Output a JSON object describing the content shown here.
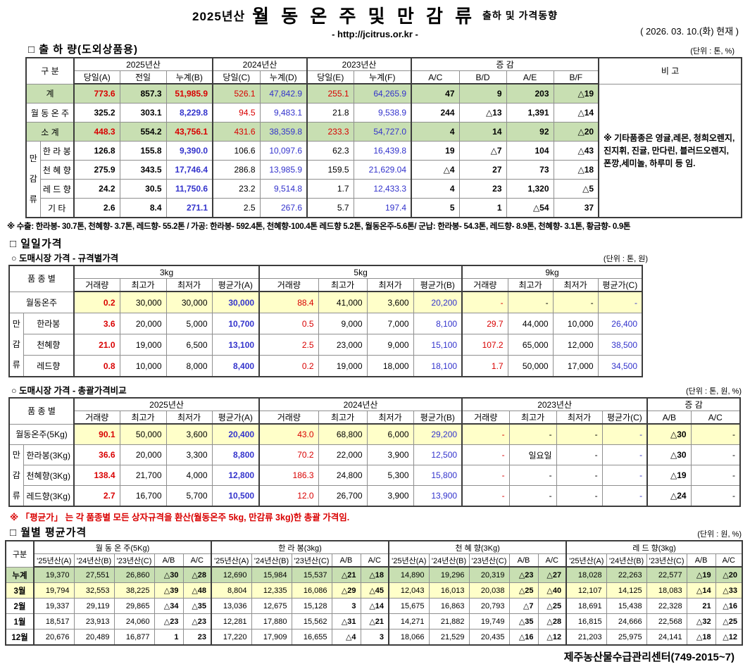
{
  "header": {
    "season": "2025년산",
    "title": "월 동 온 주 및 만 감 류",
    "subtitle": "출하 및 가격동향",
    "url": "- http://jcitrus.or.kr -",
    "date": "( 2026. 03. 10.(화) 현재 )"
  },
  "shipment": {
    "section_title": "□ 출 하 량(도외상품용)",
    "unit": "(단위 : 톤, %)",
    "first_col": "구      분",
    "year_groups": [
      "2025년산",
      "2024년산",
      "2023년산"
    ],
    "change_label": "증        감",
    "remark_col": "비 고",
    "columns": [
      "당일(A)",
      "전일",
      "누계(B)",
      "당일(C)",
      "누계(D)",
      "당일(E)",
      "누계(F)",
      "A/C",
      "B/D",
      "A/E",
      "B/F"
    ],
    "group_label": "만감류",
    "rows": [
      {
        "label": "계",
        "hl": "green",
        "v": [
          "773.6",
          "857.3",
          "51,985.9",
          "526.1",
          "47,842.9",
          "255.1",
          "64,265.9",
          "47",
          "9",
          "203",
          "△19"
        ],
        "s": [
          "rb",
          "b",
          "rb",
          "r",
          "bl",
          "r",
          "bl",
          "b",
          "b",
          "b",
          "b"
        ]
      },
      {
        "label": "월 동 온 주",
        "hl": "",
        "v": [
          "325.2",
          "303.1",
          "8,229.8",
          "94.5",
          "9,483.1",
          "21.8",
          "9,538.9",
          "244",
          "△13",
          "1,391",
          "△14"
        ],
        "s": [
          "b",
          "b",
          "bb",
          "r",
          "bl",
          "",
          "bl",
          "b",
          "b",
          "b",
          "b"
        ]
      },
      {
        "label": "소    계",
        "hl": "green",
        "v": [
          "448.3",
          "554.2",
          "43,756.1",
          "431.6",
          "38,359.8",
          "233.3",
          "54,727.0",
          "4",
          "14",
          "92",
          "△20"
        ],
        "s": [
          "rb",
          "b",
          "rb",
          "r",
          "bl",
          "r",
          "bl",
          "b",
          "b",
          "b",
          "b"
        ]
      },
      {
        "label": "한 라 봉",
        "hl": "",
        "v": [
          "126.8",
          "155.8",
          "9,390.0",
          "106.6",
          "10,097.6",
          "62.3",
          "16,439.8",
          "19",
          "△7",
          "104",
          "△43"
        ],
        "s": [
          "b",
          "b",
          "bb",
          "",
          "bl",
          "",
          "bl",
          "b",
          "b",
          "b",
          "b"
        ]
      },
      {
        "label": "천 혜 향",
        "hl": "",
        "v": [
          "275.9",
          "343.5",
          "17,746.4",
          "286.8",
          "13,985.9",
          "159.5",
          "21,629.04",
          "△4",
          "27",
          "73",
          "△18"
        ],
        "s": [
          "b",
          "b",
          "bb",
          "",
          "bl",
          "",
          "bl",
          "b",
          "b",
          "b",
          "b"
        ]
      },
      {
        "label": "레 드 향",
        "hl": "",
        "v": [
          "24.2",
          "30.5",
          "11,750.6",
          "23.2",
          "9,514.8",
          "1.7",
          "12,433.3",
          "4",
          "23",
          "1,320",
          "△5"
        ],
        "s": [
          "b",
          "b",
          "bb",
          "",
          "bl",
          "",
          "bl",
          "b",
          "b",
          "b",
          "b"
        ]
      },
      {
        "label": "기    타",
        "hl": "",
        "v": [
          "2.6",
          "8.4",
          "271.1",
          "2.5",
          "267.6",
          "5.7",
          "197.4",
          "5",
          "1",
          "△54",
          "37"
        ],
        "s": [
          "b",
          "b",
          "bb",
          "",
          "bl",
          "",
          "bl",
          "b",
          "b",
          "b",
          "b"
        ]
      }
    ],
    "remark": "※ 기타품종은 영귤,레몬, 청희오렌지, 진지휘, 진귤, 만다린, 블러드오렌지, 폰깡,세미놀, 하루미 등 임.",
    "footnote": "※ 수출: 한라봉- 30.7톤, 천혜향- 3.7톤, 레드향- 55.2톤 / 가공: 한라봉- 592.4톤, 천혜향-100.4톤 레드향 5.2톤, 월동온주-5.6톤/  군납: 한라봉- 54.3톤, 레드향- 8.9톤, 천혜향- 3.1톤, 황금향- 0.9톤"
  },
  "daily": {
    "section_title": "□ 일일가격",
    "by_spec": {
      "subtitle": "○ 도매시장 가격 - 규격별가격",
      "unit": "(단위 : 톤, 원)",
      "first_col": "품 종 별",
      "col_groups": [
        "3kg",
        "5kg",
        "9kg"
      ],
      "columns": [
        "거래량",
        "최고가",
        "최저가",
        "평균가(A)",
        "거래량",
        "최고가",
        "최저가",
        "평균가(B)",
        "거래량",
        "최고가",
        "최저가",
        "평균가(C)"
      ],
      "group_label": "만감류",
      "rows": [
        {
          "label": "월동온주",
          "hl": "yellow",
          "v": [
            "0.2",
            "30,000",
            "30,000",
            "30,000",
            "88.4",
            "41,000",
            "3,600",
            "20,200",
            "-",
            "-",
            "-",
            "-"
          ],
          "s": [
            "rb",
            "",
            "",
            "bb",
            "r",
            "",
            "",
            "bl",
            "r",
            "",
            "",
            "bl"
          ]
        },
        {
          "label": "한라봉",
          "hl": "",
          "v": [
            "3.6",
            "20,000",
            "5,000",
            "10,700",
            "0.5",
            "9,000",
            "7,000",
            "8,100",
            "29.7",
            "44,000",
            "10,000",
            "26,400"
          ],
          "s": [
            "rb",
            "",
            "",
            "bb",
            "r",
            "",
            "",
            "bl",
            "r",
            "",
            "",
            "bl"
          ]
        },
        {
          "label": "천혜향",
          "hl": "",
          "v": [
            "21.0",
            "19,000",
            "6,500",
            "13,100",
            "2.5",
            "23,000",
            "9,000",
            "15,100",
            "107.2",
            "65,000",
            "12,000",
            "38,500"
          ],
          "s": [
            "rb",
            "",
            "",
            "bb",
            "r",
            "",
            "",
            "bl",
            "r",
            "",
            "",
            "bl"
          ]
        },
        {
          "label": "레드향",
          "hl": "",
          "v": [
            "0.8",
            "10,000",
            "8,000",
            "8,400",
            "0.2",
            "19,000",
            "18,000",
            "18,100",
            "1.7",
            "50,000",
            "17,000",
            "34,500"
          ],
          "s": [
            "rb",
            "",
            "",
            "bb",
            "r",
            "",
            "",
            "bl",
            "r",
            "",
            "",
            "bl"
          ]
        }
      ]
    },
    "overall": {
      "subtitle": "○ 도매시장 가격 - 총괄가격비교",
      "unit": "(단위 : 톤, 원, %)",
      "first_col": "품 종 별",
      "col_groups": [
        "2025년산",
        "2024년산",
        "2023년산"
      ],
      "change_label": "증    감",
      "columns": [
        "거래량",
        "최고가",
        "최저가",
        "평균가(A)",
        "거래량",
        "최고가",
        "최저가",
        "평균가(B)",
        "거래량",
        "최고가",
        "최저가",
        "평균가(C)",
        "A/B",
        "A/C"
      ],
      "group_label": "만감류",
      "rows": [
        {
          "label": "월동온주(5Kg)",
          "hl": "yellow",
          "v": [
            "90.1",
            "50,000",
            "3,600",
            "20,400",
            "43.0",
            "68,800",
            "6,000",
            "29,200",
            "-",
            "-",
            "-",
            "-",
            "△30",
            "-"
          ],
          "s": [
            "rb",
            "",
            "",
            "bb",
            "r",
            "",
            "",
            "bl",
            "r",
            "",
            "",
            "bl",
            "b",
            ""
          ]
        },
        {
          "label": "한라봉(3Kg)",
          "hl": "",
          "v": [
            "36.6",
            "20,000",
            "3,300",
            "8,800",
            "70.2",
            "22,000",
            "3,900",
            "12,500",
            "-",
            "일요일",
            "-",
            "-",
            "△30",
            "-"
          ],
          "s": [
            "rb",
            "",
            "",
            "bb",
            "r",
            "",
            "",
            "bl",
            "r",
            "",
            "",
            "bl",
            "b",
            ""
          ]
        },
        {
          "label": "천혜향(3Kg)",
          "hl": "",
          "v": [
            "138.4",
            "21,700",
            "4,000",
            "12,800",
            "186.3",
            "24,800",
            "5,300",
            "15,800",
            "-",
            "-",
            "-",
            "-",
            "△19",
            "-"
          ],
          "s": [
            "rb",
            "",
            "",
            "bb",
            "r",
            "",
            "",
            "bl",
            "r",
            "",
            "",
            "bl",
            "b",
            ""
          ]
        },
        {
          "label": "레드향(3Kg)",
          "hl": "",
          "v": [
            "2.7",
            "16,700",
            "5,700",
            "10,500",
            "12.0",
            "26,700",
            "3,900",
            "13,900",
            "-",
            "-",
            "-",
            "-",
            "△24",
            "-"
          ],
          "s": [
            "rb",
            "",
            "",
            "bb",
            "r",
            "",
            "",
            "bl",
            "r",
            "",
            "",
            "bl",
            "b",
            ""
          ]
        }
      ],
      "note": "※ 「평균가」 는 각 품종별 모든 상자규격을 환산(월동온주 5kg, 만감류 3kg)한 총괄 가격임."
    }
  },
  "monthly": {
    "section_title": "□ 월별 평균가격",
    "unit": "(단위 : 원, %)",
    "first_col": "구분",
    "col_groups": [
      "월 동 온 주(5Kg)",
      "한 라  봉(3kg)",
      "천 혜 향(3Kg)",
      "레 드 향(3kg)"
    ],
    "columns": [
      "'25년산(A)",
      "'24년산(B)",
      "'23년산(C)",
      "A/B",
      "A/C"
    ],
    "col_styles": [
      "",
      "",
      "",
      "b",
      "b"
    ],
    "rows": [
      {
        "label": "누계",
        "hl": "green",
        "v": [
          "19,370",
          "27,551",
          "26,860",
          "△30",
          "△28",
          "12,690",
          "15,984",
          "15,537",
          "△21",
          "△18",
          "14,890",
          "19,296",
          "20,319",
          "△23",
          "△27",
          "18,028",
          "22,263",
          "22,577",
          "△19",
          "△20"
        ]
      },
      {
        "label": "3월",
        "hl": "yellow",
        "v": [
          "19,794",
          "32,553",
          "38,225",
          "△39",
          "△48",
          "8,804",
          "12,335",
          "16,086",
          "△29",
          "△45",
          "12,043",
          "16,013",
          "20,038",
          "△25",
          "△40",
          "12,107",
          "14,125",
          "18,083",
          "△14",
          "△33"
        ]
      },
      {
        "label": "2월",
        "hl": "",
        "v": [
          "19,337",
          "29,119",
          "29,865",
          "△34",
          "△35",
          "13,036",
          "12,675",
          "15,128",
          "3",
          "△14",
          "15,675",
          "16,863",
          "20,793",
          "△7",
          "△25",
          "18,691",
          "15,438",
          "22,328",
          "21",
          "△16"
        ]
      },
      {
        "label": "1월",
        "hl": "",
        "v": [
          "18,517",
          "23,913",
          "24,060",
          "△23",
          "△23",
          "12,281",
          "17,880",
          "15,562",
          "△31",
          "△21",
          "14,271",
          "21,882",
          "19,749",
          "△35",
          "△28",
          "16,815",
          "24,666",
          "22,568",
          "△32",
          "△25"
        ]
      },
      {
        "label": "12월",
        "hl": "",
        "v": [
          "20,676",
          "20,489",
          "16,877",
          "1",
          "23",
          "17,220",
          "17,909",
          "16,655",
          "△4",
          "3",
          "18,066",
          "21,529",
          "20,435",
          "△16",
          "△12",
          "21,203",
          "25,975",
          "24,141",
          "△18",
          "△12"
        ]
      }
    ]
  },
  "footer": "제주농산물수급관리센터(749-2015~7)"
}
